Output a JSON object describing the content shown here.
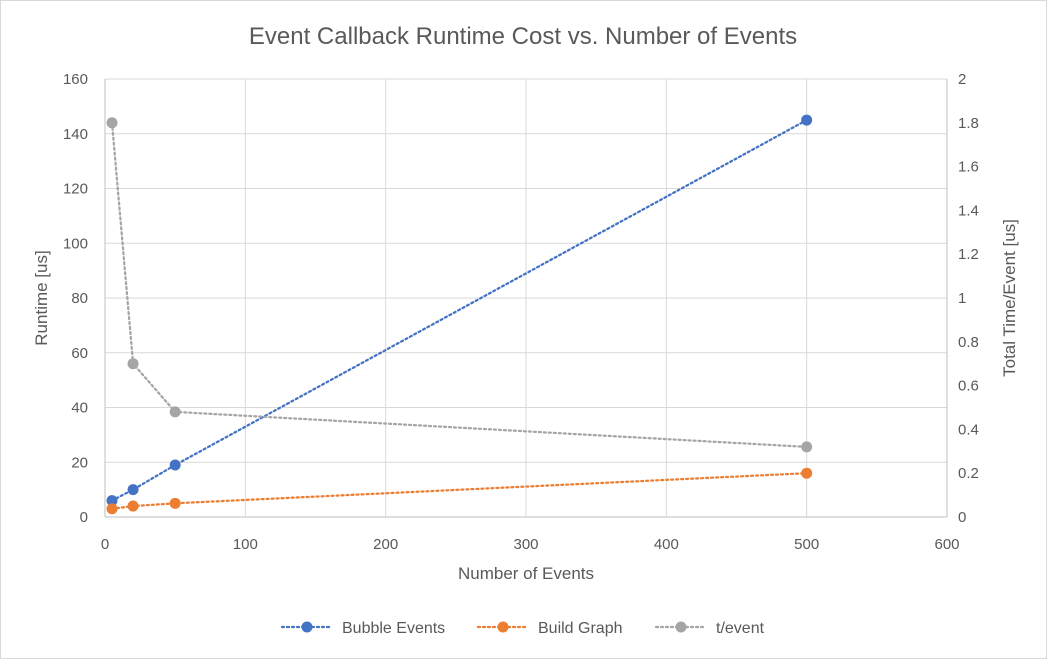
{
  "chart_data": {
    "type": "scatter",
    "title": "Event Callback Runtime Cost vs. Number of Events",
    "xlabel": "Number of Events",
    "ylabel": "Runtime [us]",
    "y2label": "Total Time/Event [us]",
    "xlim": [
      0,
      600
    ],
    "ylim": [
      0,
      160
    ],
    "y2lim": [
      0,
      2
    ],
    "x_ticks": [
      "0",
      "100",
      "200",
      "300",
      "400",
      "500",
      "600"
    ],
    "y_ticks": [
      "0",
      "20",
      "40",
      "60",
      "80",
      "100",
      "120",
      "140",
      "160"
    ],
    "y2_ticks": [
      "0",
      "0.2",
      "0.4",
      "0.6",
      "0.8",
      "1",
      "1.2",
      "1.4",
      "1.6",
      "1.8",
      "2"
    ],
    "grid": true,
    "legend_position": "bottom",
    "series": [
      {
        "name": "Bubble Events",
        "axis": "left",
        "color": "#4472c4",
        "x": [
          5,
          20,
          50,
          500
        ],
        "y": [
          6,
          10,
          19,
          145
        ]
      },
      {
        "name": "Build Graph",
        "axis": "left",
        "color": "#ed7d31",
        "x": [
          5,
          20,
          50,
          500
        ],
        "y": [
          3,
          4,
          5,
          16
        ]
      },
      {
        "name": "t/event",
        "axis": "right",
        "color": "#a5a5a5",
        "x": [
          5,
          20,
          50,
          500
        ],
        "y": [
          1.8,
          0.7,
          0.48,
          0.32
        ]
      }
    ]
  }
}
